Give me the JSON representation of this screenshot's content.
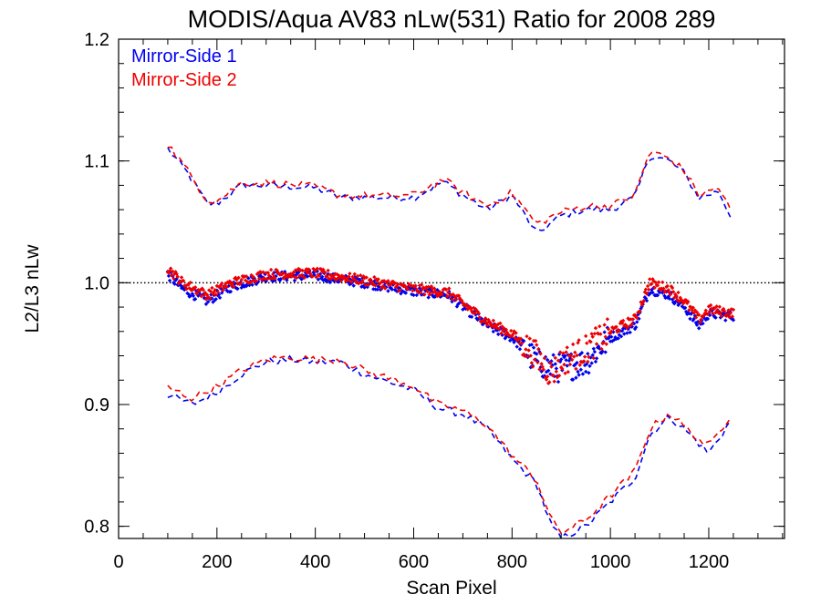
{
  "chart_data": {
    "type": "scatter",
    "title": "MODIS/Aqua AV83 nLw(531) Ratio for 2008 289",
    "xlabel": "Scan Pixel",
    "ylabel": "L2/L3 nLw",
    "xlim": [
      0,
      1354
    ],
    "ylim": [
      0.79,
      1.2
    ],
    "x_ticks": [
      0,
      200,
      400,
      600,
      800,
      1000,
      1200
    ],
    "x_tick_labels": [
      "0",
      "200",
      "400",
      "600",
      "800",
      "1000",
      "1200"
    ],
    "y_ticks": [
      0.8,
      0.9,
      1.0,
      1.1,
      1.2
    ],
    "y_tick_labels": [
      "0.8",
      "0.9",
      "1.0",
      "1.1",
      "1.2"
    ],
    "reference_line": 1.0,
    "legend_position": "top-left",
    "colors": {
      "mirror_side_1": "#0000ee",
      "mirror_side_2": "#ee0000",
      "axis": "#000000"
    },
    "legend": [
      "Mirror-Side 1",
      "Mirror-Side 2"
    ],
    "series": [
      {
        "name": "Mirror-Side 1",
        "color": "#0000ee",
        "mean_anchors": [
          [
            100,
            1.007
          ],
          [
            130,
            0.995
          ],
          [
            180,
            0.985
          ],
          [
            230,
            0.997
          ],
          [
            300,
            1.005
          ],
          [
            400,
            1.006
          ],
          [
            500,
            1.0
          ],
          [
            600,
            0.993
          ],
          [
            670,
            0.99
          ],
          [
            750,
            0.965
          ],
          [
            800,
            0.955
          ],
          [
            850,
            0.935
          ],
          [
            880,
            0.93
          ],
          [
            900,
            0.93
          ],
          [
            950,
            0.935
          ],
          [
            1000,
            0.955
          ],
          [
            1050,
            0.965
          ],
          [
            1080,
            0.995
          ],
          [
            1120,
            0.99
          ],
          [
            1150,
            0.98
          ],
          [
            1180,
            0.965
          ],
          [
            1200,
            0.975
          ],
          [
            1250,
            0.972
          ]
        ],
        "upper_anchors": [
          [
            100,
            1.11
          ],
          [
            140,
            1.09
          ],
          [
            180,
            1.065
          ],
          [
            200,
            1.065
          ],
          [
            250,
            1.08
          ],
          [
            300,
            1.08
          ],
          [
            400,
            1.078
          ],
          [
            450,
            1.07
          ],
          [
            550,
            1.07
          ],
          [
            600,
            1.07
          ],
          [
            660,
            1.083
          ],
          [
            700,
            1.072
          ],
          [
            750,
            1.06
          ],
          [
            800,
            1.072
          ],
          [
            850,
            1.04
          ],
          [
            900,
            1.055
          ],
          [
            950,
            1.06
          ],
          [
            1000,
            1.06
          ],
          [
            1050,
            1.07
          ],
          [
            1080,
            1.105
          ],
          [
            1120,
            1.1
          ],
          [
            1150,
            1.09
          ],
          [
            1180,
            1.07
          ],
          [
            1220,
            1.075
          ],
          [
            1250,
            1.05
          ]
        ],
        "lower_anchors": [
          [
            100,
            0.908
          ],
          [
            150,
            0.9
          ],
          [
            200,
            0.91
          ],
          [
            250,
            0.925
          ],
          [
            300,
            0.935
          ],
          [
            350,
            0.937
          ],
          [
            400,
            0.935
          ],
          [
            450,
            0.935
          ],
          [
            500,
            0.925
          ],
          [
            600,
            0.912
          ],
          [
            650,
            0.897
          ],
          [
            700,
            0.892
          ],
          [
            750,
            0.88
          ],
          [
            800,
            0.855
          ],
          [
            850,
            0.835
          ],
          [
            880,
            0.8
          ],
          [
            900,
            0.79
          ],
          [
            950,
            0.8
          ],
          [
            1000,
            0.82
          ],
          [
            1050,
            0.84
          ],
          [
            1080,
            0.875
          ],
          [
            1120,
            0.89
          ],
          [
            1150,
            0.88
          ],
          [
            1200,
            0.86
          ],
          [
            1250,
            0.89
          ]
        ]
      },
      {
        "name": "Mirror-Side 2",
        "color": "#ee0000",
        "mean_anchors": [
          [
            100,
            1.012
          ],
          [
            130,
            1.0
          ],
          [
            180,
            0.99
          ],
          [
            230,
            1.0
          ],
          [
            300,
            1.007
          ],
          [
            400,
            1.008
          ],
          [
            500,
            1.002
          ],
          [
            600,
            0.995
          ],
          [
            670,
            0.992
          ],
          [
            750,
            0.968
          ],
          [
            800,
            0.958
          ],
          [
            850,
            0.94
          ],
          [
            880,
            0.925
          ],
          [
            900,
            0.935
          ],
          [
            950,
            0.945
          ],
          [
            1000,
            0.96
          ],
          [
            1050,
            0.97
          ],
          [
            1080,
            1.0
          ],
          [
            1120,
            0.995
          ],
          [
            1150,
            0.985
          ],
          [
            1180,
            0.97
          ],
          [
            1200,
            0.978
          ],
          [
            1250,
            0.975
          ]
        ],
        "upper_anchors": [
          [
            100,
            1.114
          ],
          [
            140,
            1.092
          ],
          [
            180,
            1.068
          ],
          [
            200,
            1.067
          ],
          [
            250,
            1.082
          ],
          [
            300,
            1.082
          ],
          [
            400,
            1.079
          ],
          [
            450,
            1.072
          ],
          [
            550,
            1.071
          ],
          [
            600,
            1.072
          ],
          [
            660,
            1.085
          ],
          [
            700,
            1.074
          ],
          [
            750,
            1.063
          ],
          [
            800,
            1.074
          ],
          [
            850,
            1.048
          ],
          [
            900,
            1.058
          ],
          [
            950,
            1.063
          ],
          [
            1000,
            1.063
          ],
          [
            1050,
            1.072
          ],
          [
            1080,
            1.108
          ],
          [
            1120,
            1.102
          ],
          [
            1150,
            1.092
          ],
          [
            1180,
            1.072
          ],
          [
            1220,
            1.078
          ],
          [
            1250,
            1.055
          ]
        ],
        "lower_anchors": [
          [
            100,
            0.914
          ],
          [
            150,
            0.905
          ],
          [
            200,
            0.915
          ],
          [
            250,
            0.928
          ],
          [
            300,
            0.937
          ],
          [
            350,
            0.939
          ],
          [
            400,
            0.937
          ],
          [
            450,
            0.937
          ],
          [
            500,
            0.928
          ],
          [
            600,
            0.915
          ],
          [
            650,
            0.9
          ],
          [
            700,
            0.895
          ],
          [
            750,
            0.883
          ],
          [
            800,
            0.858
          ],
          [
            850,
            0.838
          ],
          [
            880,
            0.805
          ],
          [
            900,
            0.795
          ],
          [
            950,
            0.805
          ],
          [
            1000,
            0.825
          ],
          [
            1050,
            0.845
          ],
          [
            1080,
            0.88
          ],
          [
            1120,
            0.893
          ],
          [
            1150,
            0.882
          ],
          [
            1200,
            0.865
          ],
          [
            1250,
            0.895
          ]
        ]
      }
    ]
  }
}
